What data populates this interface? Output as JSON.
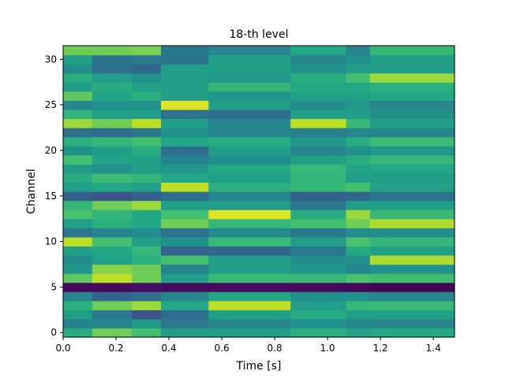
{
  "chart_data": {
    "type": "heatmap",
    "title": "18-th level",
    "xlabel": "Time [s]",
    "ylabel": "Channel",
    "xlim": [
      0,
      1.48
    ],
    "ylim": [
      -0.5,
      31.5
    ],
    "colormap": "viridis",
    "grid": false,
    "legend": "none",
    "x_ticks": [
      0.0,
      0.2,
      0.4,
      0.6,
      0.8,
      1.0,
      1.2,
      1.4
    ],
    "x_tick_labels": [
      "0.0",
      "0.2",
      "0.4",
      "0.6",
      "0.8",
      "1.0",
      "1.2",
      "1.4"
    ],
    "y_ticks": [
      0,
      5,
      10,
      15,
      20,
      25,
      30
    ],
    "y_tick_labels": [
      "0",
      "5",
      "10",
      "15",
      "20",
      "25",
      "30"
    ],
    "channels": 32,
    "segment_boundaries_s": [
      0.0,
      0.11,
      0.26,
      0.37,
      0.55,
      0.86,
      1.07,
      1.16,
      1.48
    ],
    "values": [
      [
        0.62,
        0.78,
        0.7,
        0.55,
        0.56,
        0.63,
        0.58,
        0.6
      ],
      [
        0.44,
        0.46,
        0.54,
        0.4,
        0.45,
        0.5,
        0.45,
        0.45
      ],
      [
        0.55,
        0.4,
        0.25,
        0.36,
        0.56,
        0.61,
        0.55,
        0.56
      ],
      [
        0.63,
        0.78,
        0.85,
        0.6,
        0.9,
        0.55,
        0.66,
        0.67
      ],
      [
        0.45,
        0.32,
        0.35,
        0.45,
        0.6,
        0.49,
        0.5,
        0.46
      ],
      [
        0.02,
        0.03,
        0.04,
        0.03,
        0.03,
        0.03,
        0.02,
        0.01
      ],
      [
        0.75,
        0.9,
        0.78,
        0.55,
        0.67,
        0.66,
        0.71,
        0.69
      ],
      [
        0.52,
        0.82,
        0.78,
        0.45,
        0.56,
        0.52,
        0.45,
        0.5
      ],
      [
        0.48,
        0.56,
        0.63,
        0.7,
        0.55,
        0.48,
        0.5,
        0.88
      ],
      [
        0.56,
        0.6,
        0.66,
        0.32,
        0.33,
        0.4,
        0.61,
        0.57
      ],
      [
        0.9,
        0.7,
        0.55,
        0.51,
        0.67,
        0.55,
        0.71,
        0.66
      ],
      [
        0.4,
        0.45,
        0.48,
        0.37,
        0.48,
        0.4,
        0.48,
        0.49
      ],
      [
        0.55,
        0.63,
        0.6,
        0.78,
        0.66,
        0.7,
        0.78,
        0.88
      ],
      [
        0.71,
        0.65,
        0.6,
        0.7,
        0.95,
        0.62,
        0.85,
        0.67
      ],
      [
        0.66,
        0.78,
        0.85,
        0.56,
        0.55,
        0.4,
        0.55,
        0.56
      ],
      [
        0.3,
        0.25,
        0.3,
        0.35,
        0.45,
        0.3,
        0.33,
        0.38
      ],
      [
        0.55,
        0.6,
        0.56,
        0.9,
        0.63,
        0.66,
        0.7,
        0.57
      ],
      [
        0.62,
        0.68,
        0.65,
        0.6,
        0.56,
        0.65,
        0.55,
        0.55
      ],
      [
        0.55,
        0.5,
        0.55,
        0.52,
        0.6,
        0.66,
        0.58,
        0.6
      ],
      [
        0.7,
        0.58,
        0.56,
        0.44,
        0.48,
        0.56,
        0.62,
        0.66
      ],
      [
        0.5,
        0.55,
        0.62,
        0.36,
        0.55,
        0.45,
        0.5,
        0.52
      ],
      [
        0.63,
        0.66,
        0.7,
        0.6,
        0.62,
        0.52,
        0.62,
        0.68
      ],
      [
        0.37,
        0.35,
        0.4,
        0.5,
        0.45,
        0.43,
        0.45,
        0.45
      ],
      [
        0.85,
        0.78,
        0.9,
        0.55,
        0.45,
        0.9,
        0.67,
        0.56
      ],
      [
        0.65,
        0.56,
        0.55,
        0.38,
        0.36,
        0.55,
        0.56,
        0.5
      ],
      [
        0.45,
        0.5,
        0.5,
        0.95,
        0.55,
        0.48,
        0.52,
        0.45
      ],
      [
        0.75,
        0.58,
        0.63,
        0.55,
        0.52,
        0.56,
        0.56,
        0.6
      ],
      [
        0.55,
        0.62,
        0.56,
        0.56,
        0.66,
        0.6,
        0.6,
        0.63
      ],
      [
        0.62,
        0.55,
        0.5,
        0.56,
        0.52,
        0.62,
        0.7,
        0.85
      ],
      [
        0.48,
        0.36,
        0.33,
        0.55,
        0.56,
        0.5,
        0.55,
        0.55
      ],
      [
        0.56,
        0.38,
        0.4,
        0.38,
        0.56,
        0.45,
        0.5,
        0.55
      ],
      [
        0.78,
        0.78,
        0.8,
        0.4,
        0.45,
        0.6,
        0.45,
        0.66
      ]
    ]
  }
}
